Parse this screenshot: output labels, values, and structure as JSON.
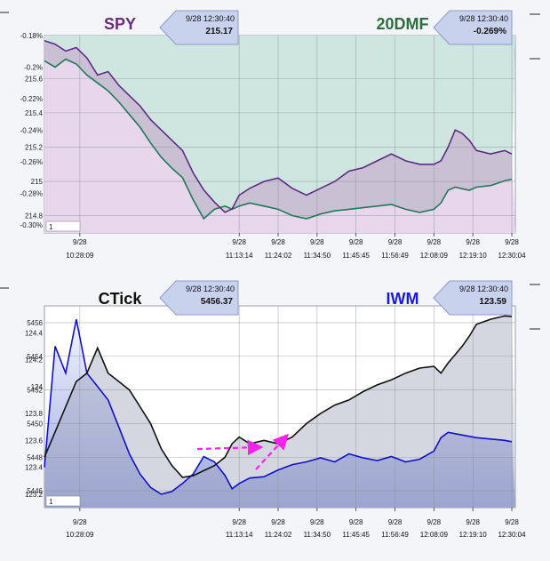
{
  "chart_data": [
    {
      "type": "line",
      "series": [
        {
          "name": "SPY",
          "color": "#5e2a84",
          "axis": "primary",
          "x": [
            "10:18",
            "10:21",
            "10:24",
            "10:27",
            "10:30",
            "10:33",
            "10:36",
            "10:39",
            "10:42",
            "10:45",
            "10:48",
            "10:51",
            "10:54",
            "10:57",
            "11:00",
            "11:03",
            "11:06",
            "11:09",
            "11:11",
            "11:13",
            "11:16",
            "11:20",
            "11:24",
            "11:28",
            "11:32",
            "11:36",
            "11:40",
            "11:44",
            "11:48",
            "11:52",
            "11:56",
            "12:00",
            "12:04",
            "12:08",
            "12:10",
            "12:12",
            "12:14",
            "12:16",
            "12:18",
            "12:20",
            "12:24",
            "12:28",
            "12:30"
          ],
          "values": [
            215.82,
            215.8,
            215.76,
            215.78,
            215.72,
            215.62,
            215.64,
            215.56,
            215.5,
            215.44,
            215.36,
            215.3,
            215.24,
            215.18,
            215.05,
            214.95,
            214.88,
            214.82,
            214.84,
            214.92,
            214.96,
            215.0,
            215.02,
            214.96,
            214.92,
            214.96,
            215.0,
            215.06,
            215.08,
            215.12,
            215.16,
            215.12,
            215.1,
            215.1,
            215.12,
            215.2,
            215.3,
            215.28,
            215.24,
            215.18,
            215.16,
            215.18,
            215.16
          ]
        },
        {
          "name": "20DMF",
          "color": "#1f7a58",
          "axis": "secondary",
          "x": [
            "10:18",
            "10:21",
            "10:24",
            "10:27",
            "10:30",
            "10:33",
            "10:36",
            "10:39",
            "10:42",
            "10:45",
            "10:48",
            "10:51",
            "10:54",
            "10:57",
            "11:00",
            "11:03",
            "11:06",
            "11:09",
            "11:11",
            "11:13",
            "11:16",
            "11:20",
            "11:24",
            "11:28",
            "11:32",
            "11:36",
            "11:40",
            "11:44",
            "11:48",
            "11:52",
            "11:56",
            "12:00",
            "12:04",
            "12:08",
            "12:10",
            "12:12",
            "12:14",
            "12:16",
            "12:18",
            "12:20",
            "12:24",
            "12:28",
            "12:30"
          ],
          "values": [
            -0.196,
            -0.2,
            -0.195,
            -0.198,
            -0.205,
            -0.21,
            -0.215,
            -0.222,
            -0.23,
            -0.238,
            -0.248,
            -0.257,
            -0.264,
            -0.27,
            -0.284,
            -0.296,
            -0.29,
            -0.288,
            -0.29,
            -0.288,
            -0.286,
            -0.288,
            -0.29,
            -0.294,
            -0.296,
            -0.293,
            -0.291,
            -0.29,
            -0.289,
            -0.288,
            -0.287,
            -0.29,
            -0.292,
            -0.29,
            -0.286,
            -0.278,
            -0.276,
            -0.277,
            -0.278,
            -0.276,
            -0.275,
            -0.272,
            -0.271
          ]
        }
      ],
      "primary_ticks": [
        "215.6",
        "215.4",
        "215.2",
        "215",
        "214.8"
      ],
      "secondary_ticks": [
        "-0.18%",
        "-0.2%",
        "-0.22%",
        "-0.24%",
        "-0.26%",
        "-0.28%",
        "-0.30%"
      ],
      "x_tick_labels": [
        {
          "date": "9/28",
          "time": "10:28:09"
        },
        {
          "date": "9/28",
          "time": "11:13:14"
        },
        {
          "date": "9/28",
          "time": "11:24:02"
        },
        {
          "date": "9/28",
          "time": "11:34:50"
        },
        {
          "date": "9/28",
          "time": "11:45:45"
        },
        {
          "date": "9/28",
          "time": "11:56:49"
        },
        {
          "date": "9/28",
          "time": "12:08:09"
        },
        {
          "date": "9/28",
          "time": "12:19:10"
        },
        {
          "date": "9/28",
          "time": "12:30:04"
        }
      ],
      "titles": {
        "left": "SPY",
        "right": "20DMF"
      },
      "callouts": [
        {
          "time": "9/28 12:30:40",
          "value": "215.17"
        },
        {
          "time": "9/28 12:30:40",
          "value": "-0.269%"
        }
      ],
      "box_label": "1",
      "grid": true
    },
    {
      "type": "area",
      "series": [
        {
          "name": "CTick",
          "color": "#111111",
          "axis": "primary",
          "x": [
            "10:18",
            "10:21",
            "10:24",
            "10:27",
            "10:30",
            "10:33",
            "10:36",
            "10:39",
            "10:42",
            "10:45",
            "10:48",
            "10:51",
            "10:54",
            "10:57",
            "11:00",
            "11:03",
            "11:06",
            "11:09",
            "11:11",
            "11:13",
            "11:16",
            "11:20",
            "11:24",
            "11:28",
            "11:32",
            "11:36",
            "11:40",
            "11:44",
            "11:48",
            "11:52",
            "11:56",
            "12:00",
            "12:04",
            "12:08",
            "12:10",
            "12:12",
            "12:14",
            "12:16",
            "12:18",
            "12:20",
            "12:24",
            "12:28",
            "12:30"
          ],
          "values": [
            5448,
            5449.5,
            5451,
            5452.5,
            5453,
            5454.5,
            5453,
            5452.5,
            5452,
            5451,
            5450,
            5448.5,
            5447.5,
            5446.8,
            5446.9,
            5447.2,
            5447.5,
            5448,
            5448.8,
            5449.2,
            5448.8,
            5449,
            5448.8,
            5449.2,
            5450,
            5450.6,
            5451.1,
            5451.4,
            5451.9,
            5452.3,
            5452.6,
            5453.0,
            5453.3,
            5453.4,
            5453.0,
            5453.6,
            5454.1,
            5454.6,
            5455.2,
            5455.9,
            5456.2,
            5456.4,
            5456.37
          ]
        },
        {
          "name": "IWM",
          "color": "#1010cc",
          "axis": "secondary",
          "x": [
            "10:18",
            "10:21",
            "10:24",
            "10:27",
            "10:30",
            "10:33",
            "10:36",
            "10:39",
            "10:42",
            "10:45",
            "10:48",
            "10:51",
            "10:54",
            "10:57",
            "11:00",
            "11:03",
            "11:06",
            "11:09",
            "11:11",
            "11:13",
            "11:16",
            "11:20",
            "11:24",
            "11:28",
            "11:32",
            "11:36",
            "11:40",
            "11:44",
            "11:48",
            "11:52",
            "11:56",
            "12:00",
            "12:04",
            "12:08",
            "12:10",
            "12:12",
            "12:14",
            "12:16",
            "12:18",
            "12:20",
            "12:24",
            "12:28",
            "12:30"
          ],
          "values": [
            123.4,
            124.3,
            124.1,
            124.5,
            124.1,
            124.0,
            123.9,
            123.7,
            123.5,
            123.35,
            123.25,
            123.2,
            123.22,
            123.28,
            123.35,
            123.48,
            123.44,
            123.34,
            123.24,
            123.28,
            123.32,
            123.33,
            123.38,
            123.42,
            123.44,
            123.47,
            123.44,
            123.5,
            123.47,
            123.45,
            123.48,
            123.44,
            123.46,
            123.52,
            123.62,
            123.66,
            123.65,
            123.64,
            123.63,
            123.62,
            123.61,
            123.6,
            123.59
          ]
        }
      ],
      "primary_ticks": [
        "5456",
        "5454",
        "5452",
        "5450",
        "5448",
        "5446"
      ],
      "secondary_ticks": [
        "124.4",
        "124.2",
        "124",
        "123.8",
        "123.6",
        "123.4",
        "123.2"
      ],
      "x_tick_labels": [
        {
          "date": "9/28",
          "time": "10:28:09"
        },
        {
          "date": "9/28",
          "time": "11:13:14"
        },
        {
          "date": "9/28",
          "time": "11:24:02"
        },
        {
          "date": "9/28",
          "time": "11:34:50"
        },
        {
          "date": "9/28",
          "time": "11:45:45"
        },
        {
          "date": "9/28",
          "time": "11:56:49"
        },
        {
          "date": "9/28",
          "time": "12:08:09"
        },
        {
          "date": "9/28",
          "time": "12:19:10"
        },
        {
          "date": "9/28",
          "time": "12:30:04"
        }
      ],
      "titles": {
        "left": "CTick",
        "right": "IWM"
      },
      "callouts": [
        {
          "time": "9/28 12:30:40",
          "value": "5456.37"
        },
        {
          "time": "9/28 12:30:40",
          "value": "123.59"
        }
      ],
      "box_label": "1",
      "grid": true,
      "annotations": [
        "magenta dashed arrows"
      ]
    }
  ],
  "colors": {
    "spy_title": "#6b2a7c",
    "dmf_title": "#2e6e3e",
    "ctick_title": "#111111",
    "iwm_title": "#1a18e6"
  }
}
